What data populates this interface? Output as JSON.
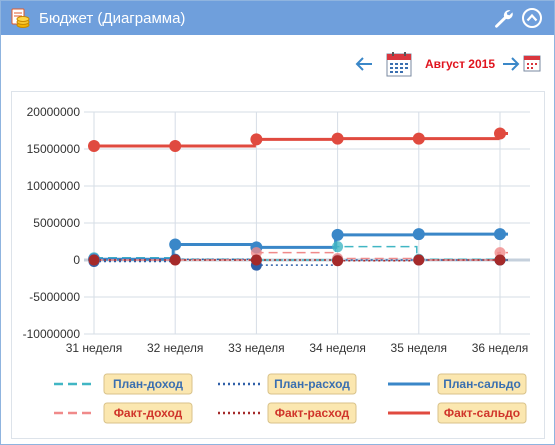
{
  "header": {
    "title": "Бюджет (Диаграмма)",
    "icon": "budget-coins-icon",
    "settings_icon": "wrench-icon",
    "collapse_icon": "collapse-up-icon"
  },
  "period": {
    "label": "Август 2015",
    "prev_icon": "arrow-left-icon",
    "next_icon": "arrow-right-icon",
    "calendar_icon": "calendar-icon"
  },
  "colors": {
    "header_bg": "#6f9fdc",
    "plan": "#3a87c8",
    "fact": "#e04a3f",
    "plan_income": "#41b6c4",
    "fact_income": "#f08a8a",
    "fact_expense": "#a52a2a",
    "plan_expense": "#2f5fa8",
    "month": "#e0141e"
  },
  "chart_data": {
    "type": "line",
    "categories": [
      "31 неделя",
      "32 неделя",
      "33 неделя",
      "34 неделя",
      "35 неделя",
      "36 неделя"
    ],
    "ylim": [
      -10000000,
      20000000
    ],
    "yticks": [
      20000000,
      15000000,
      10000000,
      5000000,
      0,
      -5000000,
      -10000000
    ],
    "grid": true,
    "legend_position": "bottom",
    "series": [
      {
        "name": "План-доход",
        "style": "dashed",
        "values": [
          300000,
          100000,
          0,
          1800000,
          100000,
          0
        ]
      },
      {
        "name": "План-расход",
        "style": "dotted",
        "values": [
          -200000,
          100000,
          -700000,
          0,
          0,
          0
        ]
      },
      {
        "name": "План-сальдо",
        "style": "solid",
        "values": [
          100000,
          2100000,
          1700000,
          3400000,
          3500000,
          3500000
        ]
      },
      {
        "name": "Факт-доход",
        "style": "dashed",
        "values": [
          0,
          0,
          1000000,
          200000,
          0,
          1000000
        ]
      },
      {
        "name": "Факт-расход",
        "style": "dotted",
        "values": [
          0,
          0,
          0,
          -100000,
          0,
          0
        ]
      },
      {
        "name": "Факт-сальдо",
        "style": "solid",
        "values": [
          15400000,
          15400000,
          16300000,
          16400000,
          16400000,
          17100000
        ]
      }
    ]
  }
}
